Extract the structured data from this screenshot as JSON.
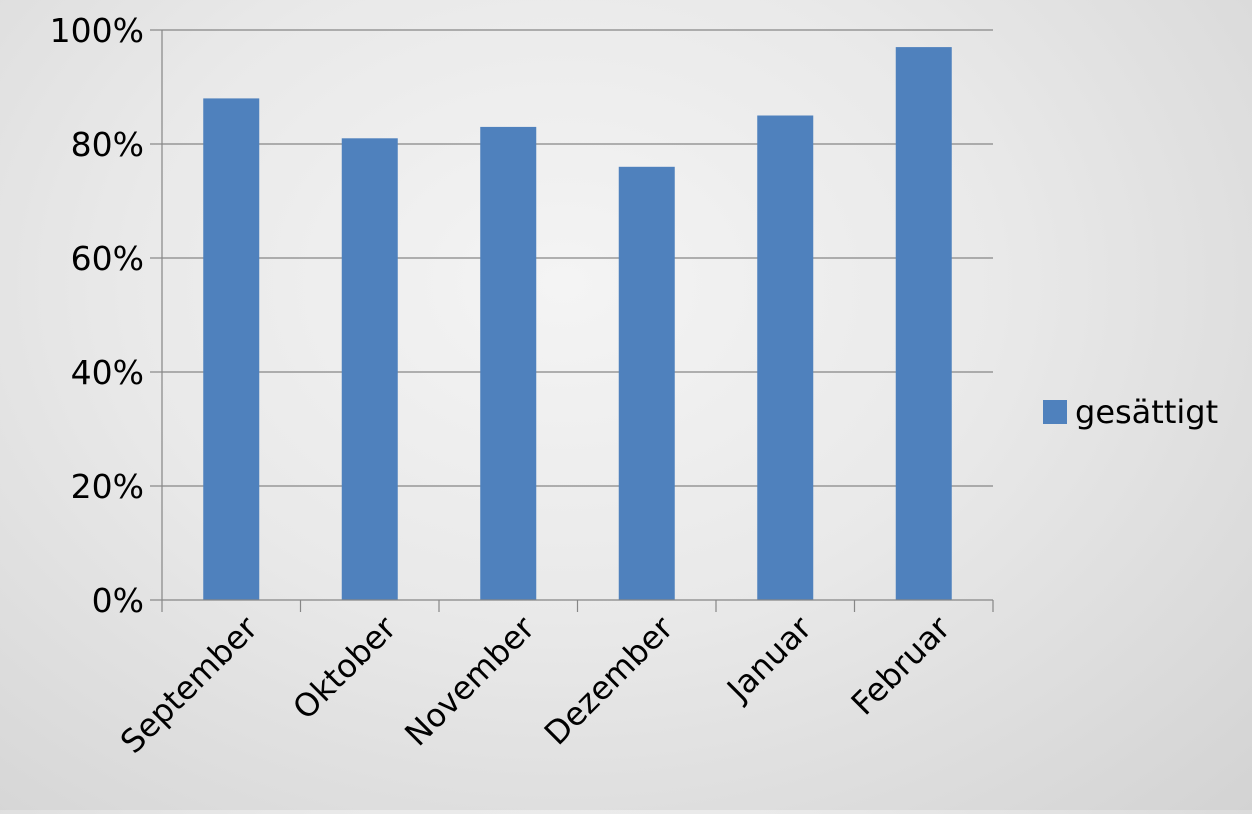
{
  "chart_data": {
    "type": "bar",
    "categories": [
      "September",
      "Oktober",
      "November",
      "Dezember",
      "Januar",
      "Februar"
    ],
    "series": [
      {
        "name": "gesättigt",
        "values": [
          0.88,
          0.81,
          0.83,
          0.76,
          0.85,
          0.97
        ]
      }
    ],
    "ylim": [
      0,
      1
    ],
    "yticks": [
      0,
      0.2,
      0.4,
      0.6,
      0.8,
      1.0
    ],
    "ytick_labels": [
      "0%",
      "20%",
      "40%",
      "60%",
      "80%",
      "100%"
    ],
    "grid": true,
    "legend_position": "right",
    "colors": {
      "bar": "#4f81bd",
      "grid": "#868686",
      "axis": "#868686"
    }
  }
}
